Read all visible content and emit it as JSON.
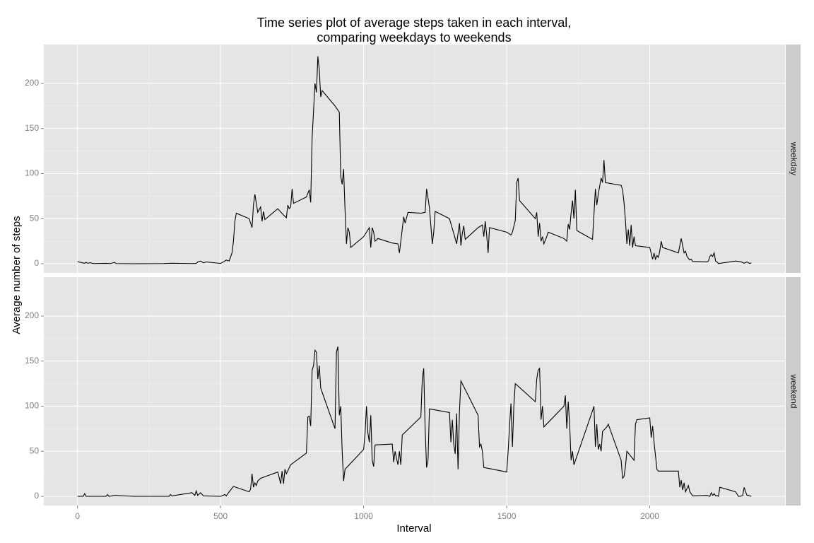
{
  "chart_data": {
    "type": "line",
    "title": [
      "Time series plot of average steps taken in each interval,",
      "comparing weekdays to weekends"
    ],
    "x_label": "Interval",
    "y_label": "Average number of steps",
    "xlim": [
      -117.75,
      2472.75
    ],
    "xticks": [
      0,
      500,
      1000,
      1500,
      2000
    ],
    "ylim": [
      -10.2,
      243.1
    ],
    "yticks": [
      0,
      50,
      100,
      150,
      200
    ],
    "grid": true,
    "series": [
      {
        "name": "weekday",
        "color": "#000000",
        "x": [
          0,
          25,
          30,
          35,
          45,
          55,
          100,
          115,
          130,
          135,
          200,
          300,
          330,
          400,
          415,
          420,
          430,
          440,
          450,
          500,
          510,
          520,
          530,
          540,
          545,
          550,
          555,
          600,
          610,
          615,
          620,
          630,
          640,
          645,
          650,
          655,
          700,
          720,
          730,
          735,
          740,
          745,
          750,
          755,
          800,
          810,
          815,
          820,
          825,
          830,
          835,
          840,
          845,
          850,
          855,
          900,
          915,
          920,
          925,
          930,
          935,
          940,
          945,
          950,
          955,
          1000,
          1020,
          1025,
          1030,
          1035,
          1040,
          1050,
          1100,
          1120,
          1125,
          1130,
          1140,
          1145,
          1155,
          1200,
          1215,
          1220,
          1225,
          1230,
          1240,
          1245,
          1250,
          1300,
          1320,
          1325,
          1335,
          1340,
          1345,
          1350,
          1355,
          1400,
          1415,
          1420,
          1425,
          1430,
          1435,
          1440,
          1500,
          1515,
          1520,
          1530,
          1535,
          1540,
          1545,
          1600,
          1605,
          1610,
          1615,
          1620,
          1625,
          1630,
          1640,
          1645,
          1700,
          1710,
          1715,
          1720,
          1725,
          1730,
          1735,
          1740,
          1745,
          1755,
          1800,
          1805,
          1810,
          1815,
          1820,
          1830,
          1835,
          1840,
          1845,
          1900,
          1905,
          1910,
          1915,
          1920,
          1925,
          1930,
          1935,
          1940,
          1945,
          1950,
          2000,
          2010,
          2015,
          2020,
          2025,
          2030,
          2035,
          2040,
          2045,
          2100,
          2110,
          2115,
          2120,
          2125,
          2130,
          2135,
          2140,
          2145,
          2150,
          2200,
          2205,
          2210,
          2215,
          2220,
          2225,
          2230,
          2235,
          2240,
          2300,
          2320,
          2330,
          2340,
          2345,
          2350,
          2355
        ],
        "values": [
          2.3,
          0.5,
          1.5,
          0.5,
          1,
          0.2,
          0.4,
          0.2,
          1.5,
          0.2,
          0,
          0.2,
          0.5,
          0.2,
          0.3,
          2,
          3,
          1,
          2,
          0.3,
          2,
          4,
          3,
          12,
          25,
          47,
          56,
          50,
          40,
          65,
          77,
          57,
          63,
          47,
          58,
          49,
          61,
          54,
          51,
          65,
          61,
          63,
          83,
          67,
          74,
          82,
          68,
          140,
          170,
          200,
          190,
          230,
          215,
          185,
          192,
          175,
          168,
          97,
          88,
          105,
          60,
          22,
          40,
          35,
          18,
          30,
          40,
          18,
          40,
          35,
          25,
          28,
          23,
          22,
          12,
          25,
          52,
          45,
          57,
          56,
          57,
          83,
          73,
          62,
          22,
          35,
          58,
          50,
          28,
          22,
          45,
          20,
          34,
          42,
          27,
          40,
          43,
          30,
          47,
          32,
          12,
          40,
          35,
          32,
          35,
          48,
          90,
          95,
          70,
          50,
          57,
          30,
          45,
          25,
          30,
          22,
          30,
          35,
          28,
          25,
          44,
          38,
          56,
          70,
          50,
          82,
          37,
          35,
          27,
          55,
          83,
          65,
          77,
          95,
          90,
          115,
          90,
          87,
          82,
          68,
          48,
          22,
          38,
          20,
          43,
          18,
          30,
          20,
          18,
          5,
          12,
          5,
          9,
          7,
          14,
          25,
          18,
          12,
          28,
          20,
          12,
          14,
          8,
          6,
          4,
          5,
          2.5,
          2,
          3,
          8,
          10,
          8,
          12,
          3,
          2,
          0.2,
          3,
          2,
          0.6,
          2,
          1,
          0.3,
          1
        ]
      },
      {
        "name": "weekend",
        "color": "#000000",
        "x": [
          0,
          20,
          25,
          30,
          100,
          105,
          110,
          130,
          200,
          300,
          320,
          325,
          330,
          400,
          410,
          415,
          420,
          430,
          440,
          500,
          515,
          520,
          530,
          545,
          600,
          605,
          610,
          615,
          620,
          625,
          630,
          640,
          700,
          710,
          715,
          720,
          725,
          730,
          745,
          800,
          805,
          810,
          815,
          820,
          825,
          830,
          835,
          840,
          845,
          850,
          900,
          905,
          910,
          915,
          920,
          925,
          930,
          935,
          1000,
          1005,
          1010,
          1015,
          1020,
          1025,
          1030,
          1035,
          1040,
          1100,
          1105,
          1110,
          1115,
          1120,
          1125,
          1130,
          1135,
          1200,
          1205,
          1210,
          1215,
          1220,
          1225,
          1230,
          1300,
          1305,
          1310,
          1315,
          1320,
          1325,
          1330,
          1335,
          1340,
          1400,
          1405,
          1410,
          1415,
          1420,
          1500,
          1505,
          1510,
          1515,
          1520,
          1525,
          1530,
          1600,
          1605,
          1610,
          1615,
          1620,
          1625,
          1630,
          1700,
          1705,
          1710,
          1715,
          1720,
          1725,
          1730,
          1735,
          1800,
          1805,
          1810,
          1815,
          1820,
          1825,
          1830,
          1835,
          1850,
          1855,
          1900,
          1905,
          1910,
          1915,
          1920,
          1945,
          1950,
          1955,
          2000,
          2005,
          2010,
          2015,
          2020,
          2025,
          2030,
          2100,
          2105,
          2110,
          2115,
          2120,
          2125,
          2135,
          2140,
          2150,
          2200,
          2210,
          2215,
          2220,
          2225,
          2230,
          2235,
          2240,
          2245,
          2300,
          2310,
          2315,
          2325,
          2330,
          2335,
          2340,
          2345,
          2355
        ],
        "values": [
          0,
          0,
          3,
          0,
          0,
          2,
          0,
          1,
          0,
          0,
          0,
          2,
          0.5,
          4,
          1,
          6,
          1,
          4,
          0.5,
          0,
          2,
          0.5,
          5,
          11,
          5,
          8,
          25,
          10,
          15,
          12,
          17,
          20,
          27,
          14,
          28,
          14,
          30,
          25,
          35,
          48,
          88,
          89,
          78,
          140,
          145,
          162,
          160,
          130,
          145,
          120,
          75,
          160,
          166,
          90,
          100,
          50,
          17,
          30,
          52,
          70,
          100,
          70,
          60,
          90,
          40,
          33,
          57,
          58,
          38,
          50,
          42,
          35,
          50,
          35,
          68,
          88,
          130,
          142,
          75,
          32,
          40,
          97,
          93,
          60,
          85,
          58,
          47,
          92,
          30,
          95,
          128,
          90,
          55,
          58,
          50,
          32,
          27,
          50,
          78,
          103,
          55,
          100,
          125,
          105,
          130,
          140,
          142,
          85,
          100,
          77,
          100,
          112,
          75,
          105,
          80,
          40,
          50,
          35,
          95,
          100,
          55,
          80,
          52,
          58,
          50,
          72,
          77,
          80,
          40,
          20,
          22,
          33,
          50,
          40,
          80,
          85,
          87,
          65,
          78,
          60,
          45,
          30,
          28,
          28,
          10,
          18,
          7,
          15,
          5,
          12,
          5,
          0.5,
          1,
          0,
          4,
          1,
          3,
          0.5,
          1,
          0,
          10,
          5,
          0,
          0,
          1,
          10,
          5,
          1,
          1,
          0
        ]
      }
    ]
  }
}
